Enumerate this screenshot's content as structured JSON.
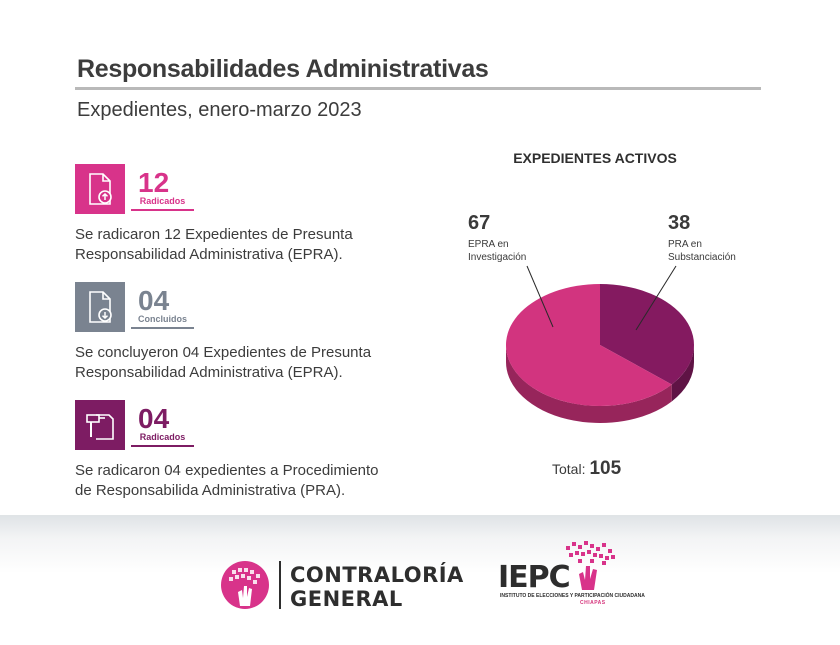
{
  "header": {
    "title": "Responsabilidades Administrativas",
    "subtitle": "Expedientes, enero-marzo 2023"
  },
  "stats": [
    {
      "number": "12",
      "tag": "Radicados",
      "text_line1": "Se radicaron 12 Expedientes de Presunta",
      "text_line2": "Responsabilidad Administrativa (EPRA).",
      "color": "#d8338a",
      "icon": "document-upload-icon"
    },
    {
      "number": "04",
      "tag": "Concluidos",
      "text_line1": "Se concluyeron 04 Expedientes de Presunta",
      "text_line2": "Responsabilidad Administrativa (EPRA).",
      "color": "#7a8390",
      "icon": "document-download-icon"
    },
    {
      "number": "04",
      "tag": "Radicados",
      "text_line1": "Se radicaron 04 expedientes a Procedimiento",
      "text_line2": "de Responsabilida Administrativa (PRA).",
      "color": "#7d1c63",
      "icon": "gavel-document-icon"
    }
  ],
  "chart_data": {
    "type": "pie",
    "title": "EXPEDIENTES ACTIVOS",
    "slices": [
      {
        "name": "EPRA en Investigación",
        "label_line1": "EPRA en",
        "label_line2": "Investigación",
        "value": 67,
        "color": "#d2347f"
      },
      {
        "name": "PRA en Substanciación",
        "label_line1": "PRA en",
        "label_line2": "Substanciación",
        "value": 38,
        "color": "#841a60"
      }
    ],
    "total_label": "Total:",
    "total": 105
  },
  "footer": {
    "contraloria_line1": "CONTRALORÍA",
    "contraloria_line2": "GENERAL",
    "iepc": "IEPC",
    "iepc_sub": "INSTITUTO DE ELECCIONES Y PARTICIPACIÓN CIUDADANA",
    "iepc_state": "CHIAPAS"
  }
}
